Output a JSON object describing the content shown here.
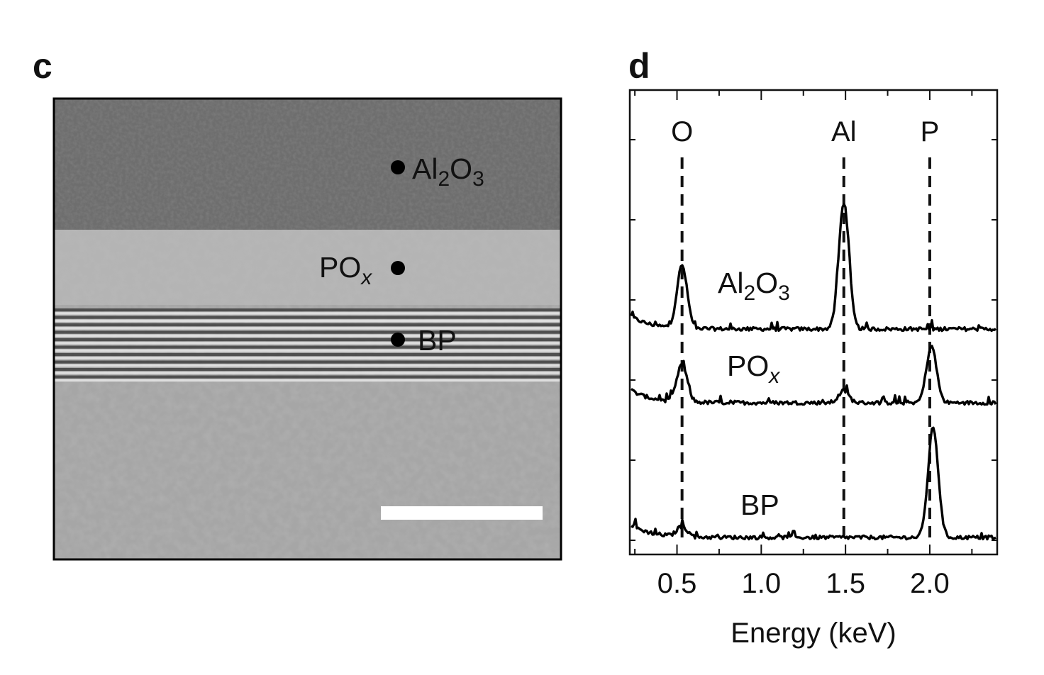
{
  "panel_c": {
    "letter": "c",
    "labels": [
      {
        "base": "Al",
        "sub1": "2",
        "mid": "O",
        "sub2": "3",
        "sub_italic": false
      },
      {
        "base": "PO",
        "sub1": "x",
        "mid": "",
        "sub2": "",
        "sub_italic": true
      },
      {
        "base": "BP",
        "sub1": "",
        "mid": "",
        "sub2": "",
        "sub_italic": false
      }
    ]
  },
  "panel_d": {
    "letter": "d",
    "chart_data": {
      "type": "line",
      "xlabel": "Energy (keV)",
      "ylabel": "",
      "title": "",
      "xlim": [
        0.22,
        2.4
      ],
      "xticks": [
        0.5,
        1.0,
        1.5,
        2.0
      ],
      "xtick_labels": [
        "0.5",
        "1.0",
        "1.5",
        "2.0"
      ],
      "grid": false,
      "legend": "none",
      "reference_lines": [
        {
          "label": "O",
          "x": 0.53
        },
        {
          "label": "Al",
          "x": 1.49
        },
        {
          "label": "P",
          "x": 2.0
        }
      ],
      "series": [
        {
          "name": "Al2O3",
          "label_parts": {
            "base": "Al",
            "sub1": "2",
            "mid": "O",
            "sub2": "3",
            "sub_italic": false
          },
          "peaks": [
            {
              "x": 0.53,
              "rel_height": 0.42
            },
            {
              "x": 1.49,
              "rel_height": 0.85
            }
          ],
          "baseline_level": 2
        },
        {
          "name": "POx",
          "label_parts": {
            "base": "PO",
            "sub1": "x",
            "mid": "",
            "sub2": "",
            "sub_italic": true
          },
          "peaks": [
            {
              "x": 0.53,
              "rel_height": 0.25
            },
            {
              "x": 1.49,
              "rel_height": 0.08
            },
            {
              "x": 2.01,
              "rel_height": 0.38
            }
          ],
          "baseline_level": 1
        },
        {
          "name": "BP",
          "label_parts": {
            "base": "BP",
            "sub1": "",
            "mid": "",
            "sub2": "",
            "sub_italic": false
          },
          "peaks": [
            {
              "x": 0.53,
              "rel_height": 0.07
            },
            {
              "x": 2.02,
              "rel_height": 0.74
            }
          ],
          "baseline_level": 0
        }
      ]
    }
  }
}
